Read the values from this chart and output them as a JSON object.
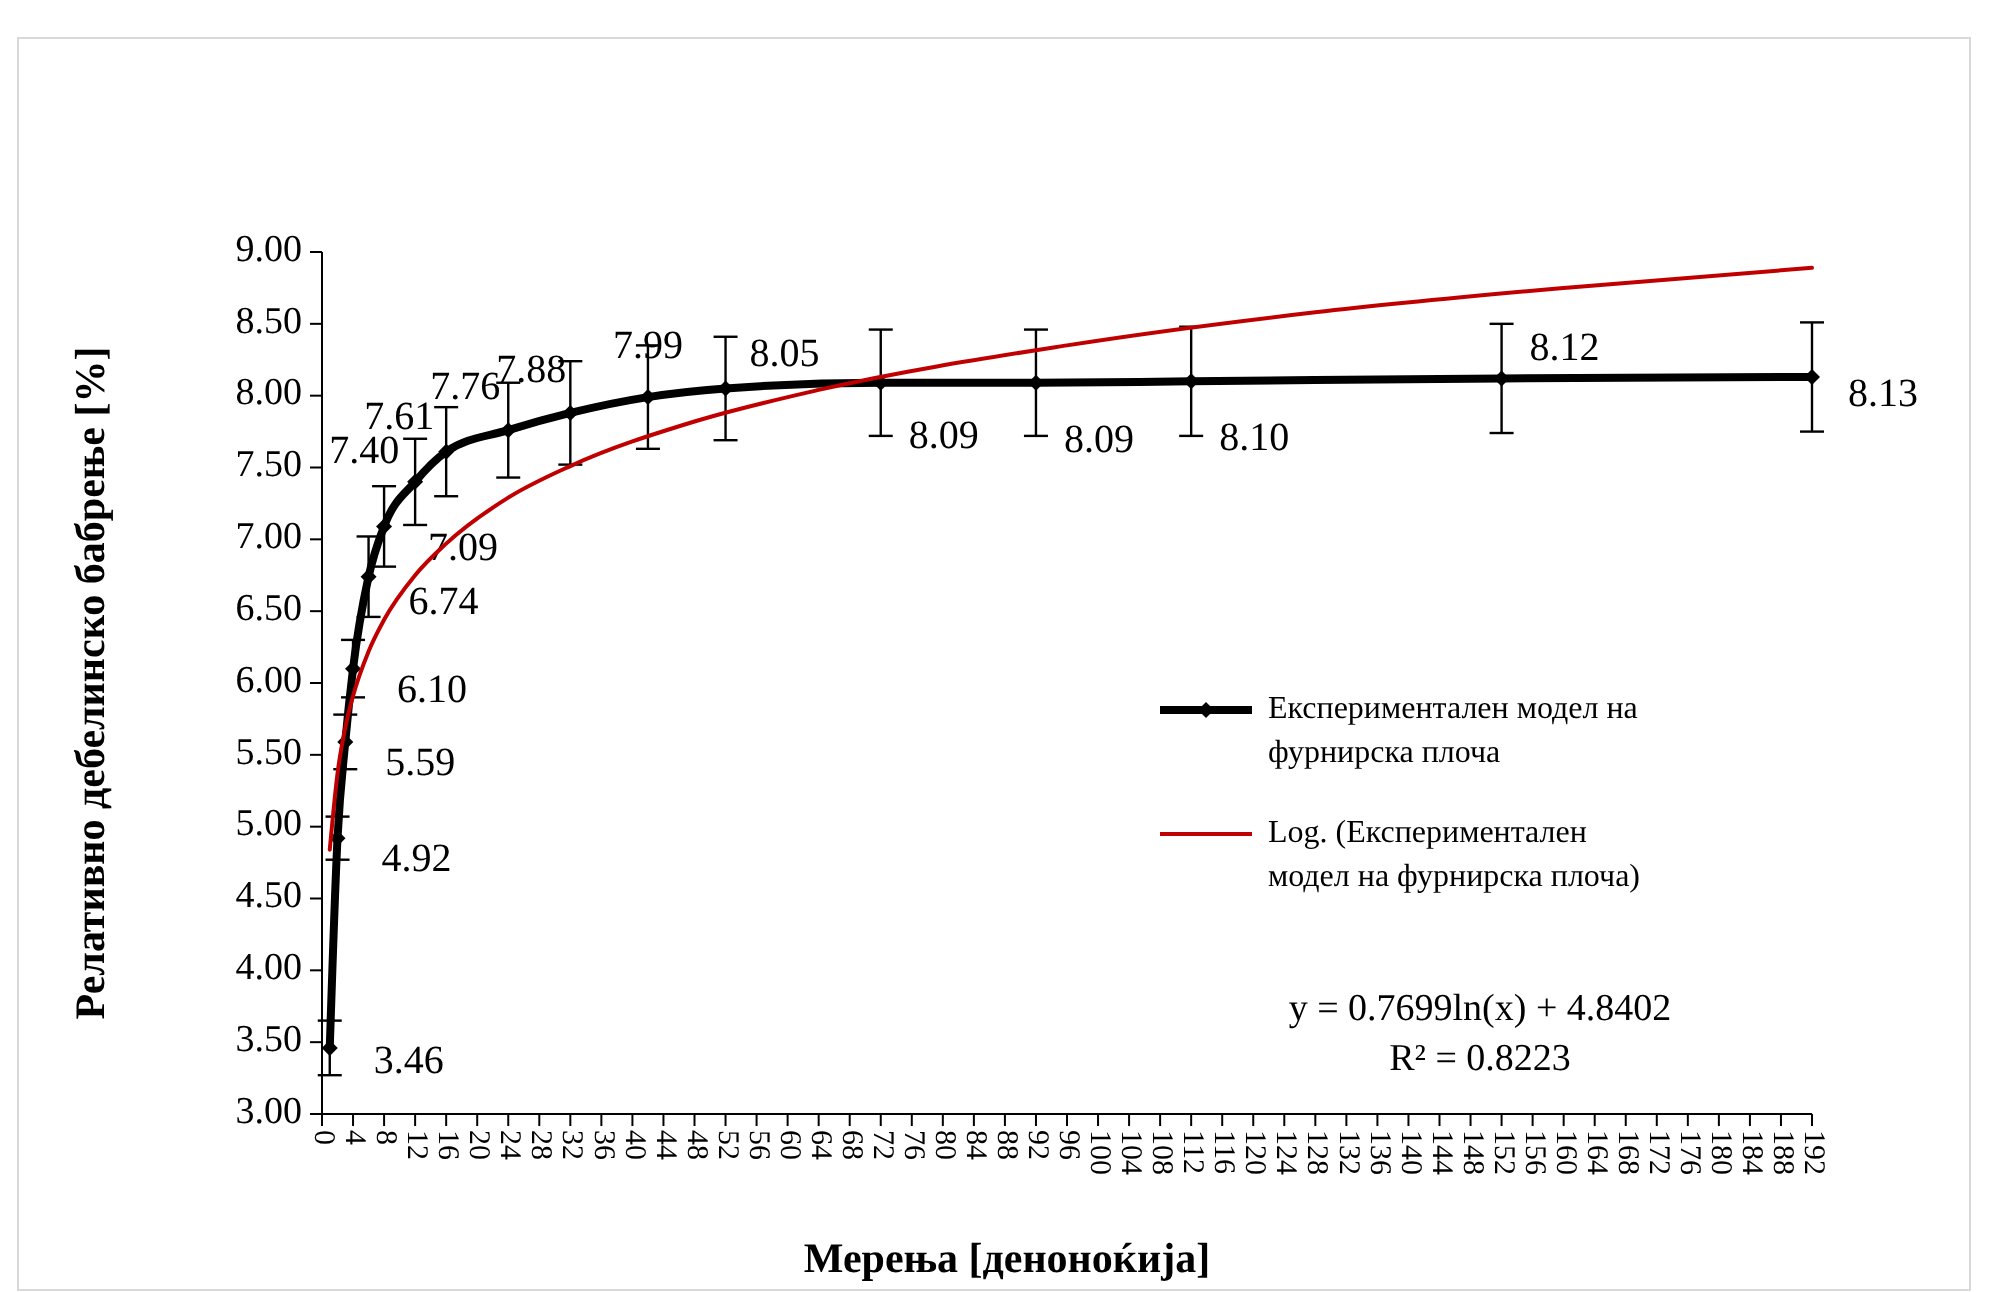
{
  "chart_data": {
    "type": "line",
    "xlabel": "Мерења [деноноќија]",
    "ylabel": "Релативно дебелинско бабрење [%]",
    "xlim": [
      0,
      192
    ],
    "xticks": [
      0,
      4,
      8,
      12,
      16,
      20,
      24,
      28,
      32,
      36,
      40,
      44,
      48,
      52,
      56,
      60,
      64,
      68,
      72,
      76,
      80,
      84,
      88,
      92,
      96,
      100,
      104,
      108,
      112,
      116,
      120,
      124,
      128,
      132,
      136,
      140,
      144,
      148,
      152,
      156,
      160,
      164,
      168,
      172,
      176,
      180,
      184,
      188,
      192
    ],
    "ylim": [
      3,
      9
    ],
    "yticks": [
      {
        "value": 3,
        "label": "3.00"
      },
      {
        "value": 3.5,
        "label": "3.50"
      },
      {
        "value": 4,
        "label": "4.00"
      },
      {
        "value": 4.5,
        "label": "4.50"
      },
      {
        "value": 5,
        "label": "5.00"
      },
      {
        "value": 5.5,
        "label": "5.50"
      },
      {
        "value": 6,
        "label": "6.00"
      },
      {
        "value": 6.5,
        "label": "6.50"
      },
      {
        "value": 7,
        "label": "7.00"
      },
      {
        "value": 7.5,
        "label": "7.50"
      },
      {
        "value": 8,
        "label": "8.00"
      },
      {
        "value": 8.5,
        "label": "8.50"
      },
      {
        "value": 9,
        "label": "9.00"
      }
    ],
    "series": [
      {
        "name": "Експериментален модел на фурнирска плоча",
        "color": "#000000",
        "marker": "diamond",
        "x": [
          1,
          2,
          3,
          4,
          6,
          8,
          12,
          16,
          24,
          32,
          42,
          52,
          72,
          92,
          112,
          152,
          192
        ],
        "values": [
          3.46,
          4.92,
          5.59,
          6.1,
          6.74,
          7.09,
          7.4,
          7.61,
          7.76,
          7.88,
          7.99,
          8.05,
          8.09,
          8.09,
          8.1,
          8.12,
          8.13
        ],
        "value_labels": [
          "3.46",
          "4.92",
          "5.59",
          "6.10",
          "6.74",
          "7.09",
          "7.40",
          "7.61",
          "7.76",
          "7.88",
          "7.99",
          "8.05",
          "8.09",
          "8.09",
          "8.10",
          "8.12",
          "8.13"
        ],
        "errors": [
          0.19,
          0.15,
          0.19,
          0.2,
          0.28,
          0.28,
          0.3,
          0.31,
          0.33,
          0.36,
          0.36,
          0.36,
          0.37,
          0.37,
          0.38,
          0.38,
          0.38
        ]
      },
      {
        "name": "Log. (Експериментален модел на фурнирска плоча)",
        "color": "#c00000",
        "marker": "none",
        "x": [
          1,
          2,
          3,
          4,
          6,
          8,
          12,
          16,
          24,
          32,
          48,
          64,
          96,
          128,
          160,
          192
        ],
        "values": [
          4.84,
          5.37,
          5.69,
          5.91,
          6.22,
          6.44,
          6.75,
          6.97,
          7.29,
          7.51,
          7.82,
          8.04,
          8.35,
          8.58,
          8.75,
          8.89
        ]
      }
    ],
    "annotations": [
      "y = 0.7699ln(x) + 4.8402",
      "R² = 0.8223"
    ],
    "legend": "right",
    "grid": false
  }
}
